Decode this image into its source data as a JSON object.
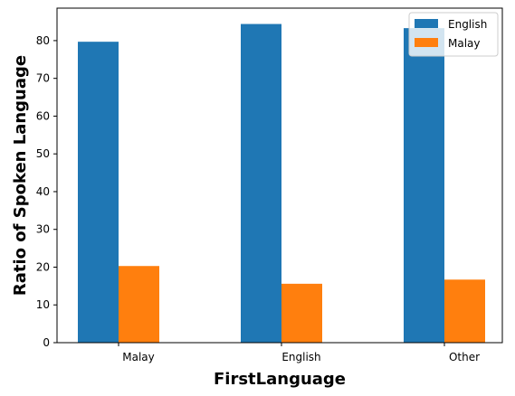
{
  "chart_data": {
    "type": "bar",
    "title": "",
    "xlabel": "FirstLanguage",
    "ylabel": "Ratio of Spoken Language",
    "categories": [
      "Malay",
      "English",
      "Other"
    ],
    "series": [
      {
        "name": "English",
        "color": "#1f77b4",
        "values": [
          79.7,
          84.4,
          83.3
        ]
      },
      {
        "name": "Malay",
        "color": "#ff7f0e",
        "values": [
          20.3,
          15.6,
          16.7
        ]
      }
    ],
    "ylim": [
      0,
      88.6
    ],
    "yticks": [
      0,
      10,
      20,
      30,
      40,
      50,
      60,
      70,
      80
    ],
    "grid": false,
    "legend_position": "top-right"
  }
}
